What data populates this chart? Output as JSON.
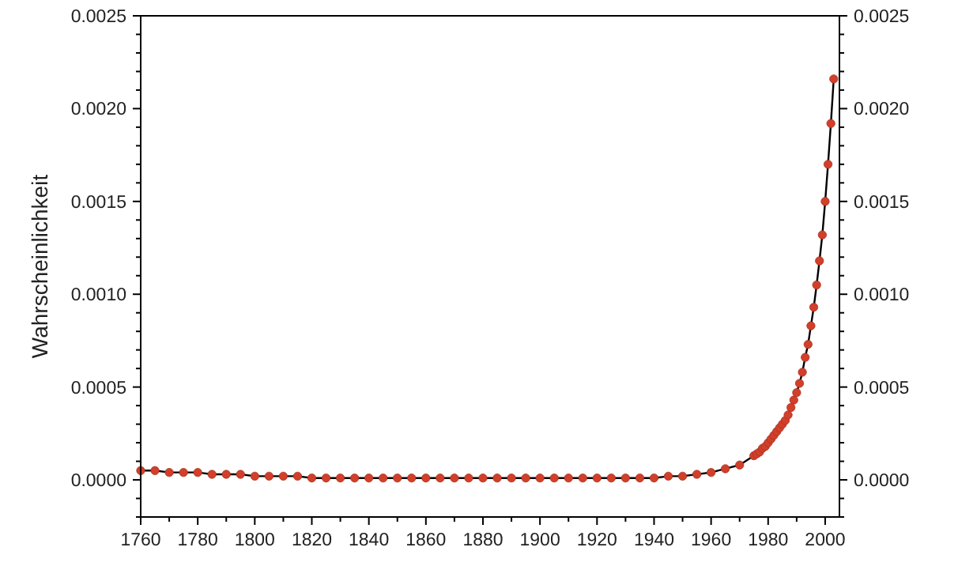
{
  "chart_data": {
    "type": "line",
    "ylabel": "Wahrscheinlichkeit",
    "x": [
      1760,
      1765,
      1770,
      1775,
      1780,
      1785,
      1790,
      1795,
      1800,
      1805,
      1810,
      1815,
      1820,
      1825,
      1830,
      1835,
      1840,
      1845,
      1850,
      1855,
      1860,
      1865,
      1870,
      1875,
      1880,
      1885,
      1890,
      1895,
      1900,
      1905,
      1910,
      1915,
      1920,
      1925,
      1930,
      1935,
      1940,
      1945,
      1950,
      1955,
      1960,
      1965,
      1970,
      1975,
      1976,
      1977,
      1978,
      1979,
      1980,
      1981,
      1982,
      1983,
      1984,
      1985,
      1986,
      1987,
      1988,
      1989,
      1990,
      1991,
      1992,
      1993,
      1994,
      1995,
      1996,
      1997,
      1998,
      1999,
      2000,
      2001,
      2002,
      2003
    ],
    "series": [
      {
        "color": "#d23f2a",
        "values": [
          5e-05,
          5e-05,
          4e-05,
          4e-05,
          4e-05,
          3e-05,
          3e-05,
          3e-05,
          2e-05,
          2e-05,
          2e-05,
          2e-05,
          1e-05,
          1e-05,
          1e-05,
          1e-05,
          1e-05,
          1e-05,
          1e-05,
          1e-05,
          1e-05,
          1e-05,
          1e-05,
          1e-05,
          1e-05,
          1e-05,
          1e-05,
          1e-05,
          1e-05,
          1e-05,
          1e-05,
          1e-05,
          1e-05,
          1e-05,
          1e-05,
          1e-05,
          1e-05,
          2e-05,
          2e-05,
          3e-05,
          4e-05,
          6e-05,
          8e-05,
          0.00013,
          0.00014,
          0.00015,
          0.00017,
          0.00018,
          0.0002,
          0.00022,
          0.00024,
          0.00026,
          0.00028,
          0.0003,
          0.00032,
          0.00035,
          0.00039,
          0.00043,
          0.00047,
          0.00052,
          0.00058,
          0.00066,
          0.00073,
          0.00083,
          0.00093,
          0.00105,
          0.00118,
          0.00132,
          0.0015,
          0.0017,
          0.00192,
          0.00216
        ]
      }
    ],
    "marker": "circle",
    "line_style": "solid",
    "grid": false,
    "xlim": [
      1760,
      2005
    ],
    "xticks": [
      1760,
      {
        "value": 1770,
        "label": null
      },
      1780,
      {
        "value": 1790,
        "label": null
      },
      1800,
      {
        "value": 1810,
        "label": null
      },
      1820,
      {
        "value": 1830,
        "label": null
      },
      1840,
      {
        "value": 1850,
        "label": null
      },
      1860,
      {
        "value": 1870,
        "label": null
      },
      1880,
      {
        "value": 1890,
        "label": null
      },
      1900,
      {
        "value": 1910,
        "label": null
      },
      1920,
      {
        "value": 1930,
        "label": null
      },
      1940,
      {
        "value": 1950,
        "label": null
      },
      1960,
      {
        "value": 1970,
        "label": null
      },
      1980,
      {
        "value": 1990,
        "label": null
      },
      2000
    ],
    "ylim": [
      -0.0002,
      0.0025
    ],
    "yticks": [
      {
        "value": -0.0002,
        "label": null
      },
      {
        "value": -0.0001,
        "label": null
      },
      {
        "value": 0,
        "label": "0.0000"
      },
      {
        "value": 0.0001,
        "label": null
      },
      {
        "value": 0.0002,
        "label": null
      },
      {
        "value": 0.0003,
        "label": null
      },
      {
        "value": 0.0004,
        "label": null
      },
      {
        "value": 0.0005,
        "label": "0.0005"
      },
      {
        "value": 0.0006,
        "label": null
      },
      {
        "value": 0.0007,
        "label": null
      },
      {
        "value": 0.0008,
        "label": null
      },
      {
        "value": 0.0009,
        "label": null
      },
      {
        "value": 0.001,
        "label": "0.0010"
      },
      {
        "value": 0.0011,
        "label": null
      },
      {
        "value": 0.0012,
        "label": null
      },
      {
        "value": 0.0013,
        "label": null
      },
      {
        "value": 0.0014,
        "label": null
      },
      {
        "value": 0.0015,
        "label": "0.0015"
      },
      {
        "value": 0.0016,
        "label": null
      },
      {
        "value": 0.0017,
        "label": null
      },
      {
        "value": 0.0018,
        "label": null
      },
      {
        "value": 0.0019,
        "label": null
      },
      {
        "value": 0.002,
        "label": "0.0020"
      },
      {
        "value": 0.0021,
        "label": null
      },
      {
        "value": 0.0022,
        "label": null
      },
      {
        "value": 0.0023,
        "label": null
      },
      {
        "value": 0.0024,
        "label": null
      },
      {
        "value": 0.0025,
        "label": "0.0025"
      }
    ],
    "y2lim": [
      -0.0002,
      0.0025
    ],
    "y2ticks": [
      {
        "value": -0.0002,
        "label": null
      },
      {
        "value": -0.0001,
        "label": null
      },
      {
        "value": 0,
        "label": "0.0000"
      },
      {
        "value": 0.0001,
        "label": null
      },
      {
        "value": 0.0002,
        "label": null
      },
      {
        "value": 0.0003,
        "label": null
      },
      {
        "value": 0.0004,
        "label": null
      },
      {
        "value": 0.0005,
        "label": "0.0005"
      },
      {
        "value": 0.0006,
        "label": null
      },
      {
        "value": 0.0007,
        "label": null
      },
      {
        "value": 0.0008,
        "label": null
      },
      {
        "value": 0.0009,
        "label": null
      },
      {
        "value": 0.001,
        "label": "0.0010"
      },
      {
        "value": 0.0011,
        "label": null
      },
      {
        "value": 0.0012,
        "label": null
      },
      {
        "value": 0.0013,
        "label": null
      },
      {
        "value": 0.0014,
        "label": null
      },
      {
        "value": 0.0015,
        "label": "0.0015"
      },
      {
        "value": 0.0016,
        "label": null
      },
      {
        "value": 0.0017,
        "label": null
      },
      {
        "value": 0.0018,
        "label": null
      },
      {
        "value": 0.0019,
        "label": null
      },
      {
        "value": 0.002,
        "label": "0.0020"
      },
      {
        "value": 0.0021,
        "label": null
      },
      {
        "value": 0.0022,
        "label": null
      },
      {
        "value": 0.0023,
        "label": null
      },
      {
        "value": 0.0024,
        "label": null
      },
      {
        "value": 0.0025,
        "label": "0.0025"
      }
    ]
  }
}
